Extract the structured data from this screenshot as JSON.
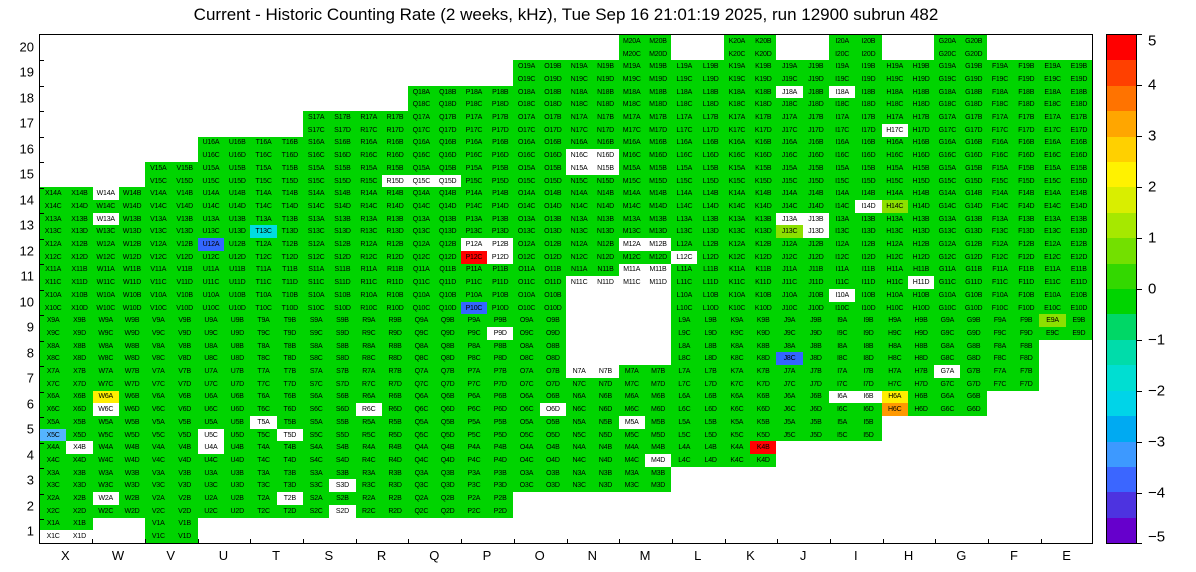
{
  "title": "Current - Historic Counting Rate (2 weeks, kHz), Tue Sep 16 21:01:19 2025, run 12900 subrun 482",
  "chart_data": {
    "type": "heatmap",
    "title": "Current - Historic Counting Rate (2 weeks, kHz), Tue Sep 16 21:01:19 2025, run 12900 subrun 482",
    "columns": [
      "X",
      "W",
      "V",
      "U",
      "T",
      "S",
      "R",
      "Q",
      "P",
      "O",
      "N",
      "M",
      "L",
      "K",
      "J",
      "I",
      "H",
      "G",
      "F",
      "E"
    ],
    "rows": [
      20,
      19,
      18,
      17,
      16,
      15,
      14,
      13,
      12,
      11,
      10,
      9,
      8,
      7,
      6,
      5,
      4,
      3,
      2,
      1
    ],
    "quadrants": [
      "A",
      "B",
      "C",
      "D"
    ],
    "label_format": "{col}{row}{quad}",
    "colorbar": {
      "min": -5,
      "max": 5,
      "tick_labels": [
        "5",
        "4",
        "3",
        "2",
        "1",
        "0",
        "−1",
        "−2",
        "−3",
        "−4",
        "−5"
      ],
      "band_colors": [
        "#ff0000",
        "#ff4000",
        "#ff7300",
        "#ffa600",
        "#ffd000",
        "#fff200",
        "#d9ee00",
        "#a6e800",
        "#73e000",
        "#33d800",
        "#00d400",
        "#00d766",
        "#00dcaa",
        "#00ded2",
        "#00d4e8",
        "#00aaf2",
        "#3d99ff",
        "#3b66ff",
        "#4d33e0",
        "#6600cc"
      ]
    },
    "color_codes": {
      "g": "#00d400",
      "G": "#8ce000",
      "y": "#ffee00",
      "o": "#ff9900",
      "r": "#ff0000",
      "c": "#00dce0",
      "L": "#55b4ff",
      "b": "#3366ff",
      "w": "#ffffff"
    },
    "default_code": "gggg",
    "row_spec": [
      {
        "row": 20,
        "cols": [
          "M",
          "K",
          "I",
          "G"
        ]
      },
      {
        "row": 19,
        "from": "O",
        "to": "E"
      },
      {
        "row": 18,
        "from": "Q",
        "to": "E",
        "ov": {
          "J": "wggg",
          "I": "wggg"
        }
      },
      {
        "row": 17,
        "from": "S",
        "to": "E",
        "ov": {
          "H": "ggwg"
        }
      },
      {
        "row": 16,
        "from": "U",
        "to": "E",
        "ov": {
          "N": "ggww"
        }
      },
      {
        "row": 15,
        "from": "V",
        "to": "E",
        "ov": {
          "R": "gggw",
          "Q": "ggww",
          "N": "wwgg"
        }
      },
      {
        "row": 14,
        "from": "X",
        "to": "E",
        "ov": {
          "W": "wggg",
          "I": "gggw",
          "H": "ggGg"
        }
      },
      {
        "row": 13,
        "from": "X",
        "to": "E",
        "ov": {
          "W": "wggg",
          "T": "ggcg",
          "J": "wwGw"
        }
      },
      {
        "row": 12,
        "from": "X",
        "to": "E",
        "ov": {
          "U": "bggg",
          "P": "wwrw",
          "M": "wwgg",
          "L": "ggwg"
        }
      },
      {
        "row": 11,
        "from": "X",
        "to": "E",
        "ov": {
          "N": "ggww",
          "M": "wwww",
          "H": "gggw"
        }
      },
      {
        "row": 10,
        "from": "X",
        "to": "E",
        "skip": [
          "N",
          "M"
        ],
        "ov": {
          "P": "ggbg",
          "I": "wggg"
        }
      },
      {
        "row": 9,
        "from": "X",
        "to": "E",
        "skip": [
          "N",
          "M"
        ],
        "ov": {
          "P": "gggw",
          "E": "Gggg"
        }
      },
      {
        "row": 8,
        "from": "X",
        "to": "F",
        "skip": [
          "N",
          "M"
        ],
        "ov": {
          "J": "ggbg"
        }
      },
      {
        "row": 7,
        "from": "X",
        "to": "F",
        "ov": {
          "N": "wwgg",
          "G": "wggg"
        }
      },
      {
        "row": 6,
        "from": "X",
        "to": "G",
        "ov": {
          "W": "ygwg",
          "R": "ggwg",
          "O": "gggw",
          "I": "wwgg",
          "H": "ygog"
        }
      },
      {
        "row": 5,
        "from": "X",
        "to": "I",
        "ov": {
          "X": "ggLg",
          "U": "ggwg",
          "T": "wggw",
          "M": "wggg"
        }
      },
      {
        "row": 4,
        "from": "X",
        "to": "K",
        "ov": {
          "X": "gwgg",
          "U": "wggg",
          "M": "gggw",
          "K": "grgg"
        }
      },
      {
        "row": 3,
        "from": "X",
        "to": "M",
        "ov": {
          "S": "gggw"
        }
      },
      {
        "row": 2,
        "from": "X",
        "to": "P",
        "ov": {
          "W": "wggg",
          "T": "gwgg",
          "S": "gggw"
        }
      },
      {
        "row": 1,
        "cols": [
          "X",
          "V"
        ],
        "ov": {
          "X": "ggww"
        }
      }
    ]
  }
}
